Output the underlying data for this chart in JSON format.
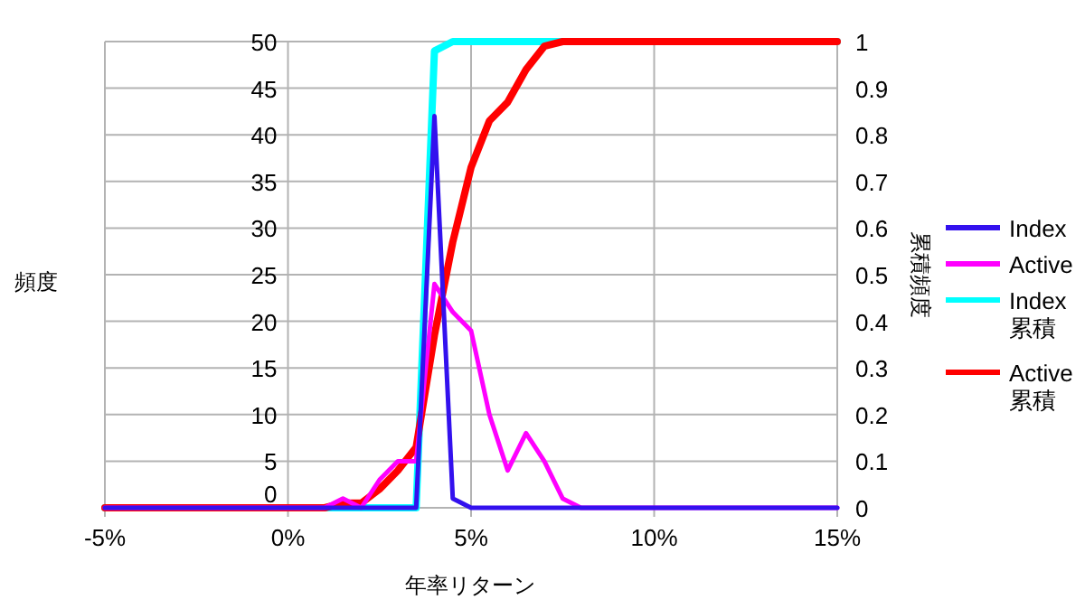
{
  "chart_data": {
    "type": "line",
    "xlabel": "年率リターン",
    "ylabel": "頻度",
    "y2label": "累積頻度",
    "xlim": [
      -5,
      15
    ],
    "xticks": [
      {
        "value": -5,
        "label": "-5%"
      },
      {
        "value": 0,
        "label": "0%"
      },
      {
        "value": 5,
        "label": "5%"
      },
      {
        "value": 10,
        "label": "10%"
      },
      {
        "value": 15,
        "label": "15%"
      }
    ],
    "ylim": [
      0,
      50
    ],
    "yticks": [
      0,
      5,
      10,
      15,
      20,
      25,
      30,
      35,
      40,
      45,
      50
    ],
    "y2lim": [
      0,
      1
    ],
    "y2ticks": [
      0,
      0.1,
      0.2,
      0.3,
      0.4,
      0.5,
      0.6,
      0.7,
      0.8,
      0.9,
      1
    ],
    "grid": true,
    "legend": "right",
    "series": [
      {
        "name": "Index",
        "color": "#3311ee",
        "x": [
          -5,
          3.5,
          4,
          4.5,
          5,
          15
        ],
        "values": [
          0,
          0,
          42,
          1,
          0,
          0
        ]
      },
      {
        "name": "Active",
        "color": "#ff00ff",
        "x": [
          -5,
          1,
          1.5,
          2,
          2.5,
          3,
          3.5,
          4,
          4.5,
          5,
          5.5,
          6,
          6.5,
          7,
          7.5,
          8,
          15
        ],
        "values": [
          0,
          0,
          1,
          0,
          3,
          5,
          5,
          24,
          21,
          19,
          10,
          4,
          8,
          5,
          1,
          0,
          0
        ]
      },
      {
        "name": "Index 累積",
        "color": "#00ffff",
        "axis": "y2",
        "x": [
          -5,
          3.5,
          4,
          4.5,
          15
        ],
        "values": [
          0,
          0,
          0.98,
          1,
          1
        ]
      },
      {
        "name": "Active 累積",
        "color": "#ff0000",
        "axis": "y2",
        "x": [
          -5,
          1,
          1.5,
          2,
          2.5,
          3,
          3.5,
          4,
          4.5,
          5,
          5.5,
          6,
          6.5,
          7,
          7.5,
          15
        ],
        "values": [
          0,
          0,
          0.01,
          0.01,
          0.04,
          0.08,
          0.13,
          0.37,
          0.57,
          0.73,
          0.83,
          0.87,
          0.94,
          0.99,
          1,
          1
        ]
      }
    ]
  }
}
